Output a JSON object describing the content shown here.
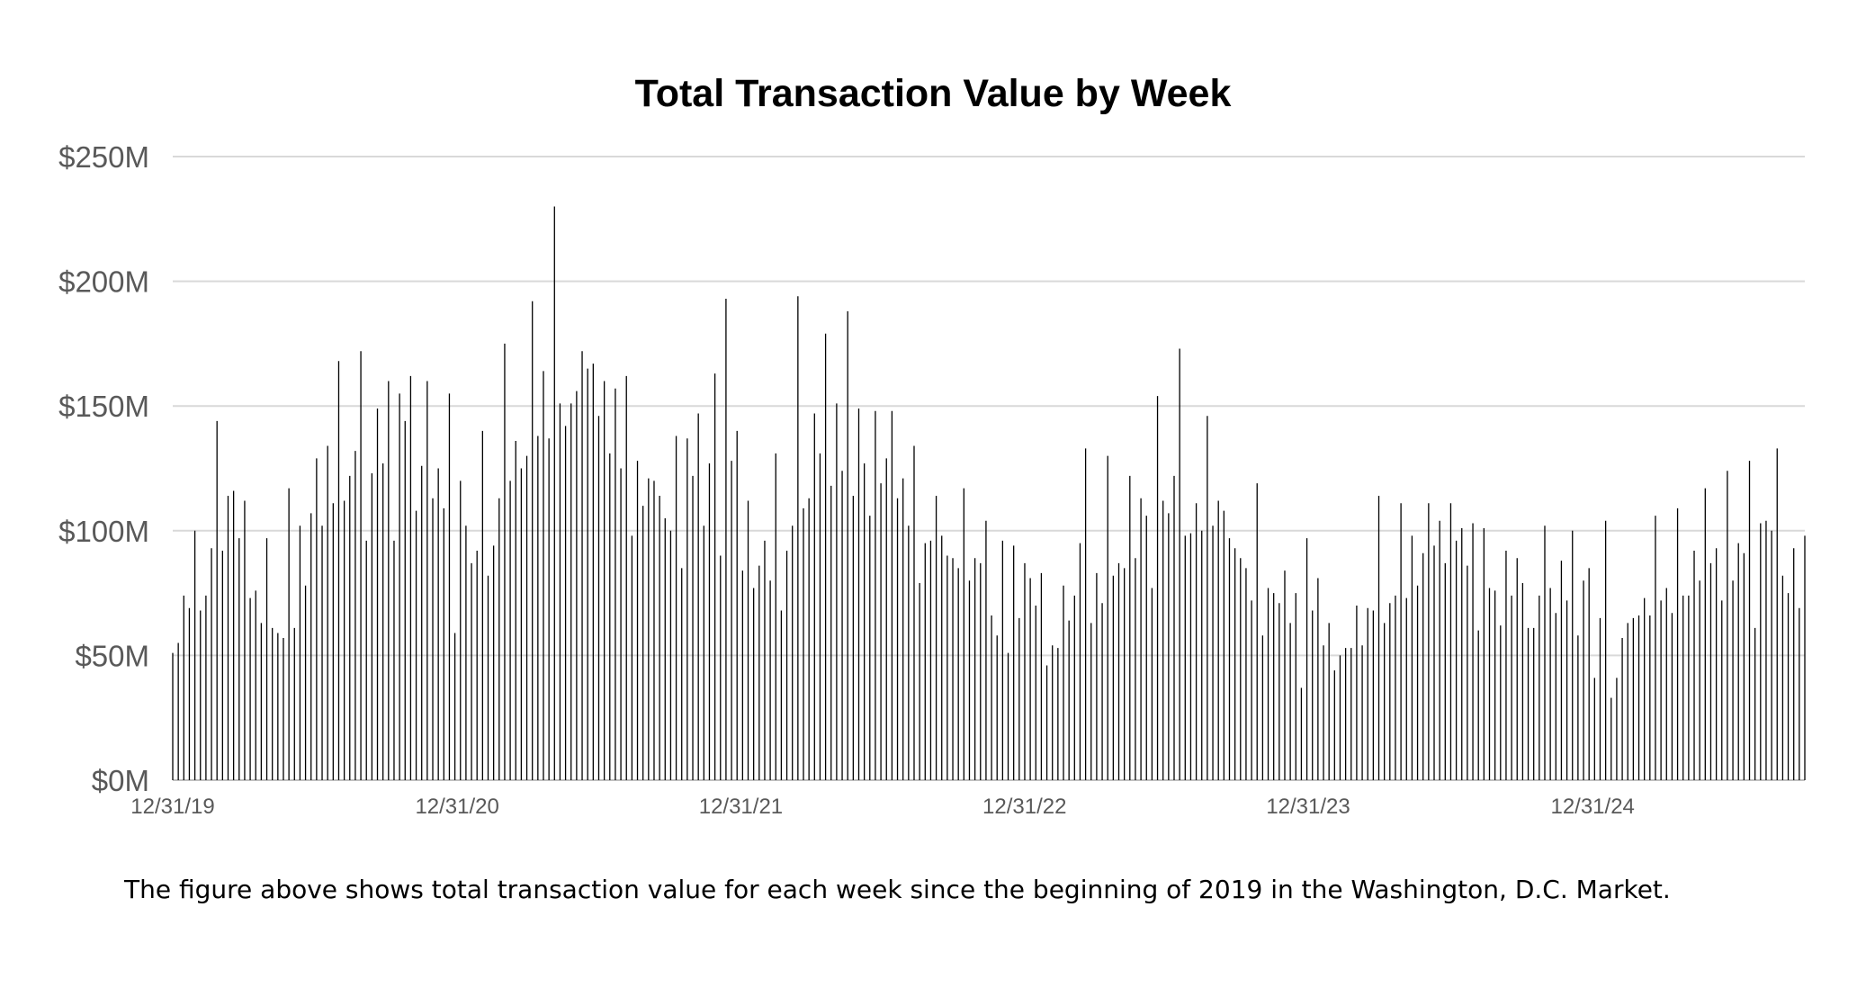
{
  "caption": "The figure above shows total transaction value for each week since the beginning of 2019 in the Washington, D.C. Market.",
  "chart_data": {
    "type": "bar",
    "title": "Total Transaction Value by Week",
    "xlabel": "",
    "ylabel": "",
    "ylim": [
      0,
      250
    ],
    "y_unit": "$M",
    "y_ticks": [
      {
        "value": 0,
        "label": "$0M"
      },
      {
        "value": 50,
        "label": "$50M"
      },
      {
        "value": 100,
        "label": "$100M"
      },
      {
        "value": 150,
        "label": "$150M"
      },
      {
        "value": 200,
        "label": "$200M"
      },
      {
        "value": 250,
        "label": "$250M"
      }
    ],
    "x_ticks": [
      {
        "date": "2019-12-31",
        "label": "12/31/19"
      },
      {
        "date": "2020-12-31",
        "label": "12/31/20"
      },
      {
        "date": "2021-12-31",
        "label": "12/31/21"
      },
      {
        "date": "2022-12-31",
        "label": "12/31/22"
      },
      {
        "date": "2023-12-31",
        "label": "12/31/23"
      },
      {
        "date": "2024-12-31",
        "label": "12/31/24"
      }
    ],
    "x_start": "2019-12-31",
    "x_end": "2025-09-30",
    "grid": true,
    "legend": "none",
    "bar_color": "#000000",
    "series": [
      {
        "values": [
          51,
          55,
          74,
          69,
          100,
          68,
          74,
          93,
          144,
          92,
          114,
          116,
          97,
          112,
          73,
          76,
          63,
          97,
          61,
          59,
          57,
          117,
          61,
          102,
          78,
          107,
          129,
          102,
          134,
          111,
          168,
          112,
          122,
          132,
          172,
          96,
          123,
          149,
          127,
          160,
          96,
          155,
          144,
          162,
          108,
          126,
          160,
          113,
          125,
          109,
          155,
          59,
          120,
          102,
          87,
          92,
          140,
          82,
          94,
          113,
          175,
          120,
          136,
          125,
          130,
          192,
          138,
          164,
          137,
          230,
          151,
          142,
          151,
          156,
          172,
          165,
          167,
          146,
          160,
          131,
          157,
          125,
          162,
          98,
          128,
          110,
          121,
          120,
          114,
          105,
          100,
          138,
          85,
          137,
          122,
          147,
          102,
          127,
          163,
          90,
          193,
          128,
          140,
          84,
          112,
          77,
          86,
          96,
          80,
          131,
          68,
          92,
          102,
          194,
          109,
          113,
          147,
          131,
          179,
          118,
          151,
          124,
          188,
          114,
          149,
          127,
          106,
          148,
          119,
          129,
          148,
          113,
          121,
          102,
          134,
          79,
          95,
          96,
          114,
          98,
          90,
          89,
          85,
          117,
          80,
          89,
          87,
          104,
          66,
          58,
          96,
          51,
          94,
          65,
          87,
          81,
          70,
          83,
          46,
          54,
          53,
          78,
          64,
          74,
          95,
          133,
          63,
          83,
          71,
          130,
          82,
          87,
          85,
          122,
          89,
          113,
          106,
          77,
          154,
          112,
          107,
          122,
          173,
          98,
          99,
          111,
          100,
          146,
          102,
          112,
          108,
          97,
          93,
          89,
          85,
          72,
          119,
          58,
          77,
          75,
          71,
          84,
          63,
          75,
          37,
          97,
          68,
          81,
          54,
          63,
          44,
          50,
          53,
          53,
          70,
          54,
          69,
          68,
          114,
          63,
          71,
          74,
          111,
          73,
          98,
          78,
          91,
          111,
          94,
          104,
          87,
          111,
          96,
          101,
          86,
          103,
          60,
          101,
          77,
          76,
          62,
          92,
          74,
          89,
          79,
          61,
          61,
          74,
          102,
          77,
          67,
          88,
          72,
          100,
          58,
          80,
          85,
          41,
          65,
          104,
          33,
          41,
          57,
          63,
          65,
          66,
          73,
          66,
          106,
          72,
          77,
          67,
          109,
          74,
          74,
          92,
          80,
          117,
          87,
          93,
          72,
          124,
          80,
          95,
          91,
          128,
          61,
          103,
          104,
          100,
          133,
          82,
          75,
          93,
          69,
          98
        ]
      }
    ]
  }
}
